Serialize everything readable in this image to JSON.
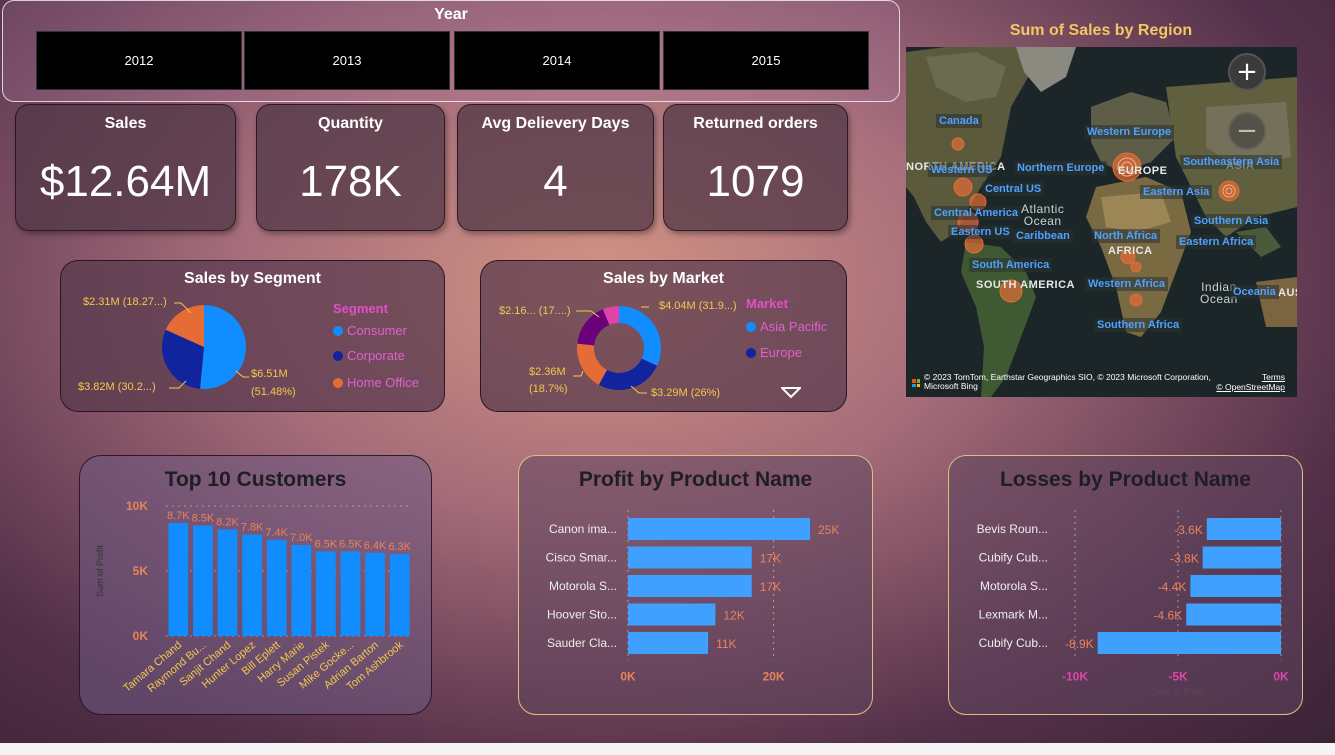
{
  "year_slicer": {
    "title": "Year",
    "options": [
      "2012",
      "2013",
      "2014",
      "2015"
    ]
  },
  "kpis": [
    {
      "title": "Sales",
      "value": "$12.64M"
    },
    {
      "title": "Quantity",
      "value": "178K"
    },
    {
      "title": "Avg Delievery Days",
      "value": "4"
    },
    {
      "title": "Returned orders",
      "value": "1079"
    }
  ],
  "segment": {
    "title": "Sales by Segment",
    "legend_title": "Segment",
    "legend": [
      "Consumer",
      "Corporate",
      "Home Office"
    ],
    "labels": {
      "home_office": "$2.31M (18.27...)",
      "corporate": "$3.82M (30.2...)",
      "consumer_value": "$6.51M",
      "consumer_pct": "(51.48%)"
    }
  },
  "market": {
    "title": "Sales by Market",
    "legend_title": "Market",
    "legend": [
      "Asia Pacific",
      "Europe"
    ],
    "labels": {
      "small": "$2.16... (17....)",
      "asia": "$4.04M (31.9...)",
      "other_value": "$2.36M",
      "other_pct": "(18.7%)",
      "europe": "$3.29M (26%)"
    }
  },
  "map": {
    "title": "Sum of Sales by Region",
    "zoom_in": "+",
    "zoom_out": "−",
    "regions": [
      "Canada",
      "Western Europe",
      "Northern Europe",
      "Southeastern Asia",
      "Western US",
      "Central US",
      "Eastern Asia",
      "Central America",
      "Eastern US",
      "Caribbean",
      "North Africa",
      "Southern Asia",
      "Eastern Africa",
      "South America",
      "Western Africa",
      "Oceania",
      "Southern Africa"
    ],
    "base_labels": {
      "north_america": "NORTH AMERICA",
      "europe": "EUROPE",
      "atlantic_1": "Atlantic",
      "atlantic_2": "Ocean",
      "africa": "AFRICA",
      "south_america": "SOUTH AMERICA",
      "indian_1": "Indian",
      "indian_2": "Ocean",
      "asia": "ASIA",
      "aus": "AUS"
    },
    "attribution_1": "© 2023 TomTom, Earthstar Geographics SIO, © 2023 Microsoft Corporation,",
    "attribution_2": "Microsoft Bing",
    "terms": "Terms",
    "osm": "© OpenStreetMap"
  },
  "customers": {
    "title": "Top 10 Customers",
    "ylabel": "Sum of Profit"
  },
  "profit": {
    "title": "Profit by Product Name",
    "xlabel": "Sum of Profit"
  },
  "losses": {
    "title": "Losses by Product Name",
    "xlabel": "Sum of Profit"
  },
  "colors": {
    "blue": "#118dff",
    "navy": "#12239e",
    "orange": "#e66c37",
    "purple": "#6b007b",
    "pink": "#e044a7",
    "label_orange": "#e8845a",
    "label_gold": "#f2c94c"
  },
  "chart_data": [
    {
      "type": "pie",
      "title": "Sales by Segment",
      "categories": [
        "Consumer",
        "Corporate",
        "Home Office"
      ],
      "values": [
        6.51,
        3.82,
        2.31
      ],
      "percent": [
        51.48,
        30.2,
        18.27
      ],
      "unit": "$M"
    },
    {
      "type": "pie",
      "title": "Sales by Market",
      "donut": true,
      "categories": [
        "Asia Pacific",
        "Europe",
        "Other (orange)",
        "Other (purple)",
        "Other (pink)"
      ],
      "values": [
        4.04,
        3.29,
        2.36,
        2.16,
        0.79
      ],
      "percent": [
        31.9,
        26,
        18.7,
        17.1,
        6.3
      ],
      "unit": "$M"
    },
    {
      "type": "bar",
      "title": "Top 10 Customers",
      "categories": [
        "Tamara Chand",
        "Raymond Bu...",
        "Sanjit Chand",
        "Hunter Lopez",
        "Bill Eplett",
        "Harry Marie",
        "Susan Pistek",
        "Mike Gocke...",
        "Adrian Barton",
        "Tom Ashbrook"
      ],
      "values": [
        8700,
        8500,
        8200,
        7800,
        7400,
        7000,
        6500,
        6500,
        6400,
        6300
      ],
      "data_labels": [
        "8.7K",
        "8.5K",
        "8.2K",
        "7.8K",
        "7.4K",
        "7.0K",
        "6.5K",
        "6.5K",
        "6.4K",
        "6.3K"
      ],
      "ylabel": "Sum of Profit",
      "ylim": [
        0,
        10000
      ],
      "yticks": [
        "0K",
        "5K",
        "10K"
      ]
    },
    {
      "type": "bar",
      "orientation": "horizontal",
      "title": "Profit by Product Name",
      "categories": [
        "Canon ima...",
        "Cisco Smar...",
        "Motorola S...",
        "Hoover Sto...",
        "Sauder Cla..."
      ],
      "values": [
        25000,
        17000,
        17000,
        12000,
        11000
      ],
      "data_labels": [
        "25K",
        "17K",
        "17K",
        "12K",
        "11K"
      ],
      "xlabel": "Sum of Profit",
      "xlim": [
        0,
        25000
      ],
      "xticks": [
        {
          "v": 0,
          "t": "0K"
        },
        {
          "v": 20000,
          "t": "20K"
        }
      ]
    },
    {
      "type": "bar",
      "orientation": "horizontal",
      "title": "Losses by Product Name",
      "categories": [
        "Bevis Roun...",
        "Cubify Cub...",
        "Motorola S...",
        "Lexmark M...",
        "Cubify Cub..."
      ],
      "values": [
        -3600,
        -3800,
        -4400,
        -4600,
        -8900
      ],
      "data_labels": [
        "-3.6K",
        "-3.8K",
        "-4.4K",
        "-4.6K",
        "-8.9K"
      ],
      "xlabel": "Sum of Profit",
      "xlim": [
        -10000,
        0
      ],
      "xticks": [
        {
          "v": -10000,
          "t": "-10K"
        },
        {
          "v": -5000,
          "t": "-5K"
        },
        {
          "v": 0,
          "t": "0K"
        }
      ]
    }
  ]
}
